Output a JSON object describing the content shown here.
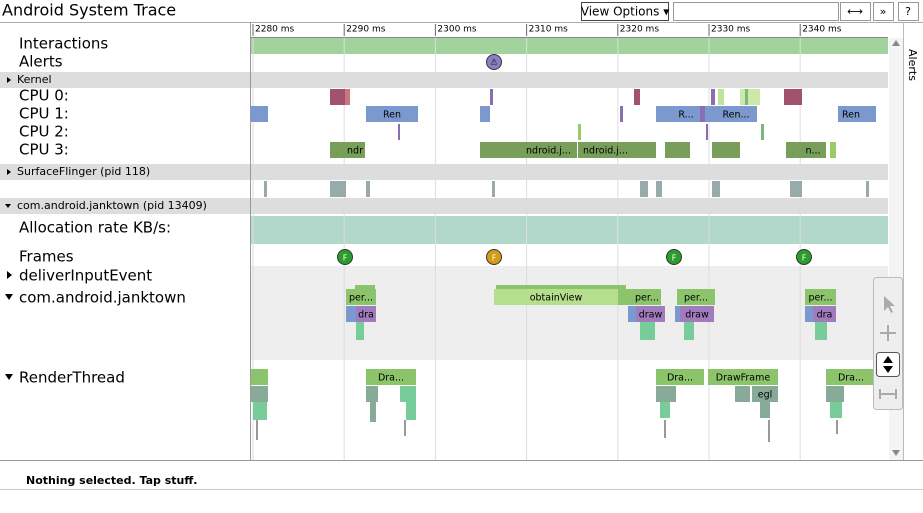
{
  "header": {
    "title": "Android System Trace",
    "view_options": "View Options ▾",
    "buttons": [
      "⟷",
      "»",
      "?"
    ]
  },
  "ruler": {
    "ticks": [
      "2280 ms",
      "2290 ms",
      "2300 ms",
      "2310 ms",
      "2320 ms",
      "2330 ms",
      "2340 ms"
    ]
  },
  "tracks": {
    "interactions": "Interactions",
    "alerts": "Alerts",
    "kernel": "Kernel",
    "cpus": [
      "CPU 0:",
      "CPU 1:",
      "CPU 2:",
      "CPU 3:"
    ],
    "surfaceflinger": "SurfaceFlinger (pid 118)",
    "process": "com.android.janktown (pid 13409)",
    "allocation": "Allocation rate KB/s:",
    "frames": "Frames",
    "threads": [
      "deliverInputEvent",
      "com.android.janktown",
      "RenderThread"
    ]
  },
  "slices": {
    "cpu1": [
      "Ren",
      "R...",
      "Ren...",
      "Ren"
    ],
    "cpu3": [
      "ndr",
      "ndroid.j...",
      "ndroid.j...",
      "n..."
    ],
    "main": [
      "per...",
      "dra",
      "obtainView",
      "per...",
      "draw",
      "per...",
      "draw",
      "per...",
      "dra"
    ],
    "render": [
      "Dra...",
      "Dra...",
      "DrawFrame",
      "egl",
      "Dra..."
    ]
  },
  "frame_markers": [
    "F",
    "F",
    "F",
    "F"
  ],
  "alert_marker": "⚠",
  "side_tab": "Alerts",
  "status": "Nothing selected. Tap stuff."
}
